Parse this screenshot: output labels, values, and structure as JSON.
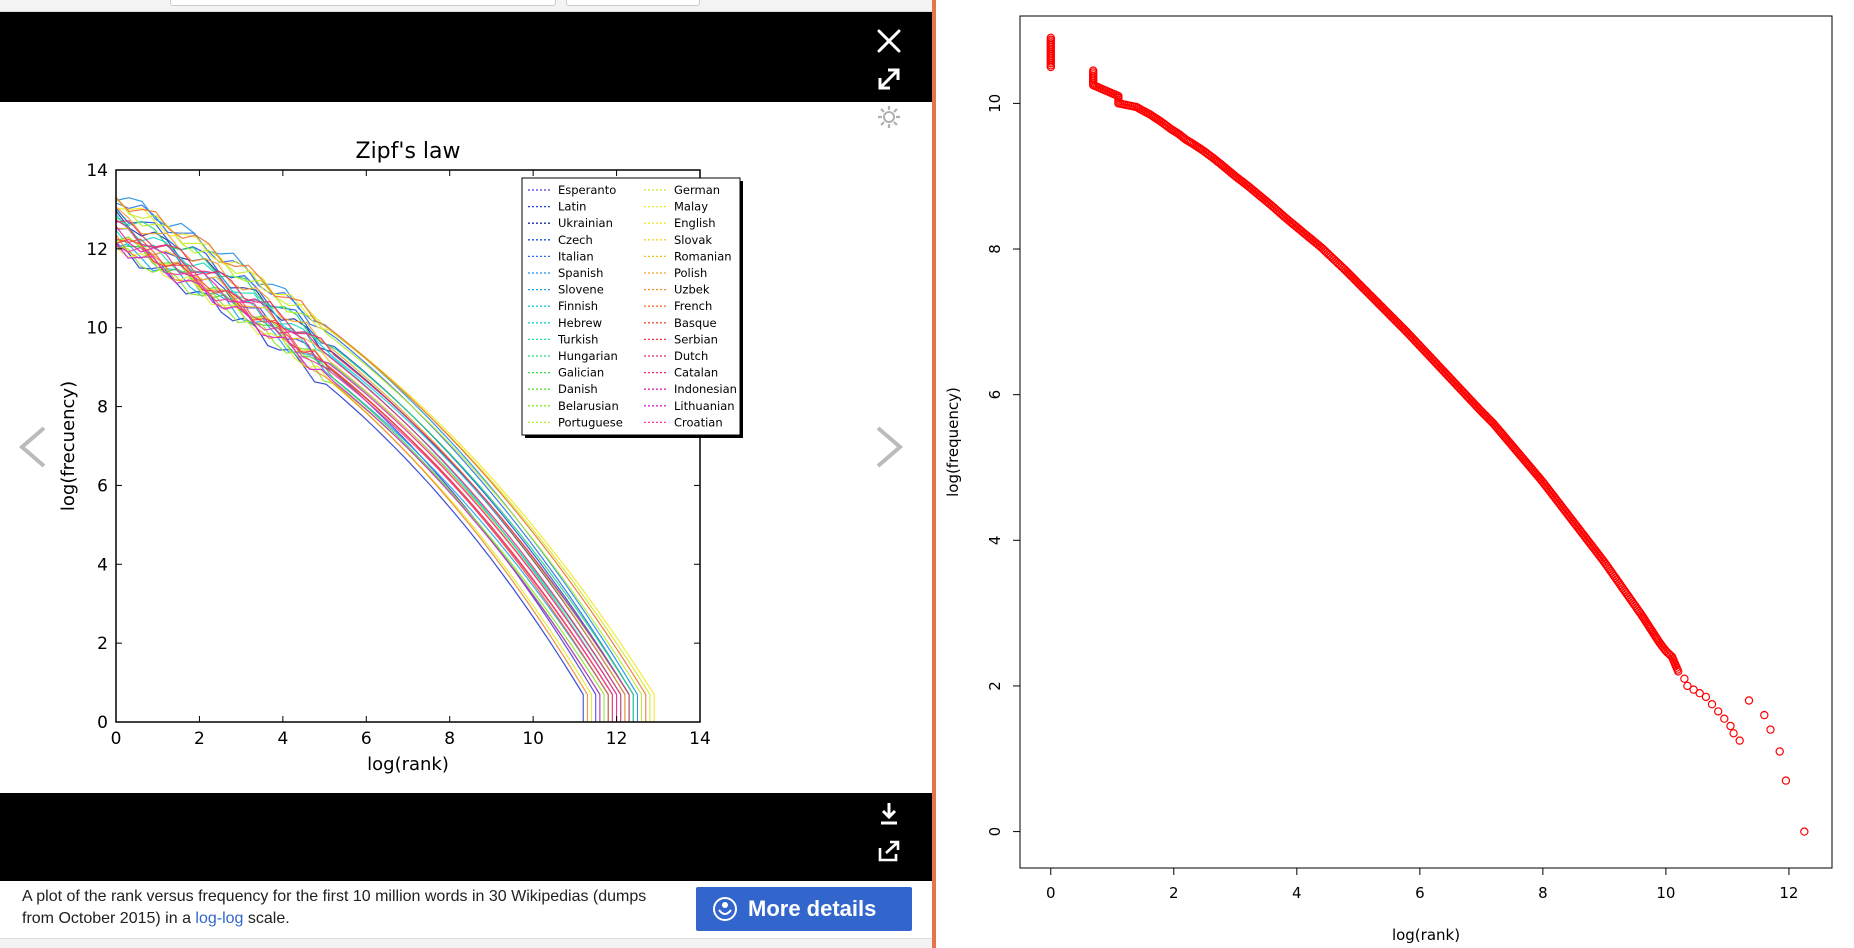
{
  "viewer": {
    "caption_before": "A plot of the rank versus frequency for the first 10 million words in 30 Wikipedias (dumps from October 2015) in a ",
    "caption_link": "log-log",
    "caption_after": " scale.",
    "more_details_label": "More details",
    "icons": [
      "close-icon",
      "expand-icon",
      "gear-icon",
      "download-icon",
      "share-icon",
      "chevron-left-icon",
      "chevron-right-icon",
      "wikimedia-icon"
    ]
  },
  "chart_data": [
    {
      "type": "line",
      "title": "Zipf's law",
      "xlabel": "log(rank)",
      "ylabel": "log(frecuency)",
      "xlim": [
        0,
        14
      ],
      "ylim": [
        0,
        14
      ],
      "xticks": [
        "0",
        "2",
        "4",
        "6",
        "8",
        "10",
        "12",
        "14"
      ],
      "yticks": [
        "0",
        "2",
        "4",
        "6",
        "8",
        "10",
        "12",
        "14"
      ],
      "legend_position": "top-right",
      "grid": false,
      "series": [
        {
          "name": "Esperanto",
          "color": "#4b3fd1",
          "x_max": 11.5,
          "y0": 12.5
        },
        {
          "name": "Latin",
          "color": "#243bd6",
          "x_max": 11.2,
          "y0": 12.0
        },
        {
          "name": "Ukrainian",
          "color": "#1b2e9c",
          "x_max": 12.2,
          "y0": 12.8
        },
        {
          "name": "Czech",
          "color": "#1a55d8",
          "x_max": 12.3,
          "y0": 13.0
        },
        {
          "name": "Italian",
          "color": "#2d6de8",
          "x_max": 12.4,
          "y0": 13.3
        },
        {
          "name": "Spanish",
          "color": "#1e8fe6",
          "x_max": 12.5,
          "y0": 13.4
        },
        {
          "name": "Slovene",
          "color": "#17a7e8",
          "x_max": 11.8,
          "y0": 12.1
        },
        {
          "name": "Finnish",
          "color": "#14c9e6",
          "x_max": 12.3,
          "y0": 12.6
        },
        {
          "name": "Hebrew",
          "color": "#14d7c8",
          "x_max": 12.0,
          "y0": 12.7
        },
        {
          "name": "Turkish",
          "color": "#16e0a6",
          "x_max": 12.1,
          "y0": 12.4
        },
        {
          "name": "Hungarian",
          "color": "#23d67a",
          "x_max": 12.4,
          "y0": 12.9
        },
        {
          "name": "Galician",
          "color": "#3fd44a",
          "x_max": 11.6,
          "y0": 12.2
        },
        {
          "name": "Danish",
          "color": "#5ee02d",
          "x_max": 11.9,
          "y0": 12.3
        },
        {
          "name": "Belarusian",
          "color": "#8be625",
          "x_max": 11.7,
          "y0": 12.0
        },
        {
          "name": "Portuguese",
          "color": "#b8ec2a",
          "x_max": 12.6,
          "y0": 13.1
        },
        {
          "name": "German",
          "color": "#cfe82c",
          "x_max": 12.8,
          "y0": 13.2
        },
        {
          "name": "Malay",
          "color": "#e2ec2a",
          "x_max": 11.4,
          "y0": 12.1
        },
        {
          "name": "English",
          "color": "#f2e92a",
          "x_max": 12.9,
          "y0": 13.2
        },
        {
          "name": "Slovak",
          "color": "#f5d52a",
          "x_max": 11.9,
          "y0": 12.3
        },
        {
          "name": "Romanian",
          "color": "#f5bb27",
          "x_max": 12.0,
          "y0": 12.5
        },
        {
          "name": "Polish",
          "color": "#f5a126",
          "x_max": 12.2,
          "y0": 12.9
        },
        {
          "name": "Uzbek",
          "color": "#f08a29",
          "x_max": 11.3,
          "y0": 12.2
        },
        {
          "name": "French",
          "color": "#f0702d",
          "x_max": 12.7,
          "y0": 13.3
        },
        {
          "name": "Basque",
          "color": "#ec5530",
          "x_max": 11.8,
          "y0": 12.4
        },
        {
          "name": "Serbian",
          "color": "#ea3a44",
          "x_max": 11.9,
          "y0": 12.3
        },
        {
          "name": "Dutch",
          "color": "#e82c62",
          "x_max": 12.3,
          "y0": 12.7
        },
        {
          "name": "Catalan",
          "color": "#e8297e",
          "x_max": 12.1,
          "y0": 12.6
        },
        {
          "name": "Indonesian",
          "color": "#e726a6",
          "x_max": 12.0,
          "y0": 12.4
        },
        {
          "name": "Lithuanian",
          "color": "#d124d8",
          "x_max": 11.6,
          "y0": 12.1
        },
        {
          "name": "Croatian",
          "color": "#f03c9c",
          "x_max": 11.9,
          "y0": 12.2
        }
      ]
    },
    {
      "type": "scatter",
      "xlabel": "log(rank)",
      "ylabel": "log(frequency)",
      "xlim": [
        -0.5,
        12.7
      ],
      "ylim": [
        -0.5,
        11.2
      ],
      "xticks": [
        "0",
        "2",
        "4",
        "6",
        "8",
        "10",
        "12"
      ],
      "yticks": [
        "0",
        "2",
        "4",
        "6",
        "8",
        "10"
      ],
      "marker": "open-circle",
      "color": "#ff0000",
      "points": [
        [
          0,
          10.9
        ],
        [
          0,
          10.8
        ],
        [
          0,
          10.7
        ],
        [
          0,
          10.6
        ],
        [
          0,
          10.5
        ],
        [
          0.69,
          10.45
        ],
        [
          0.69,
          10.35
        ],
        [
          0.69,
          10.25
        ],
        [
          1.1,
          10.1
        ],
        [
          1.1,
          10.0
        ],
        [
          1.39,
          9.95
        ],
        [
          1.61,
          9.85
        ],
        [
          1.79,
          9.75
        ],
        [
          1.95,
          9.65
        ],
        [
          2.08,
          9.58
        ],
        [
          2.2,
          9.5
        ],
        [
          2.3,
          9.45
        ],
        [
          2.48,
          9.35
        ],
        [
          2.64,
          9.25
        ],
        [
          2.83,
          9.12
        ],
        [
          3.0,
          9.0
        ],
        [
          3.2,
          8.87
        ],
        [
          3.4,
          8.73
        ],
        [
          3.6,
          8.59
        ],
        [
          3.8,
          8.44
        ],
        [
          4.0,
          8.3
        ],
        [
          4.2,
          8.16
        ],
        [
          4.4,
          8.02
        ],
        [
          4.6,
          7.86
        ],
        [
          4.8,
          7.7
        ],
        [
          5.0,
          7.53
        ],
        [
          5.2,
          7.36
        ],
        [
          5.4,
          7.19
        ],
        [
          5.6,
          7.02
        ],
        [
          5.8,
          6.85
        ],
        [
          6.0,
          6.67
        ],
        [
          6.2,
          6.49
        ],
        [
          6.4,
          6.31
        ],
        [
          6.6,
          6.13
        ],
        [
          6.8,
          5.95
        ],
        [
          7.0,
          5.77
        ],
        [
          7.2,
          5.6
        ],
        [
          7.4,
          5.4
        ],
        [
          7.6,
          5.2
        ],
        [
          7.8,
          5.0
        ],
        [
          8.0,
          4.8
        ],
        [
          8.2,
          4.58
        ],
        [
          8.4,
          4.36
        ],
        [
          8.6,
          4.14
        ],
        [
          8.8,
          3.92
        ],
        [
          9.0,
          3.7
        ],
        [
          9.1,
          3.58
        ],
        [
          9.2,
          3.46
        ],
        [
          9.3,
          3.34
        ],
        [
          9.4,
          3.22
        ],
        [
          9.5,
          3.1
        ],
        [
          9.6,
          2.98
        ],
        [
          9.7,
          2.85
        ],
        [
          9.8,
          2.72
        ],
        [
          9.9,
          2.59
        ],
        [
          10.0,
          2.48
        ],
        [
          10.1,
          2.4
        ],
        [
          10.15,
          2.3
        ],
        [
          10.2,
          2.2
        ],
        [
          10.3,
          2.1
        ],
        [
          10.35,
          2.0
        ],
        [
          10.45,
          1.95
        ],
        [
          10.55,
          1.9
        ],
        [
          10.65,
          1.85
        ],
        [
          10.75,
          1.75
        ],
        [
          10.85,
          1.65
        ],
        [
          10.95,
          1.55
        ],
        [
          11.05,
          1.45
        ],
        [
          11.1,
          1.35
        ],
        [
          11.2,
          1.25
        ],
        [
          11.35,
          1.8
        ],
        [
          11.6,
          1.6
        ],
        [
          11.7,
          1.4
        ],
        [
          11.85,
          1.1
        ],
        [
          11.95,
          0.7
        ],
        [
          12.25,
          0.0
        ]
      ]
    }
  ]
}
